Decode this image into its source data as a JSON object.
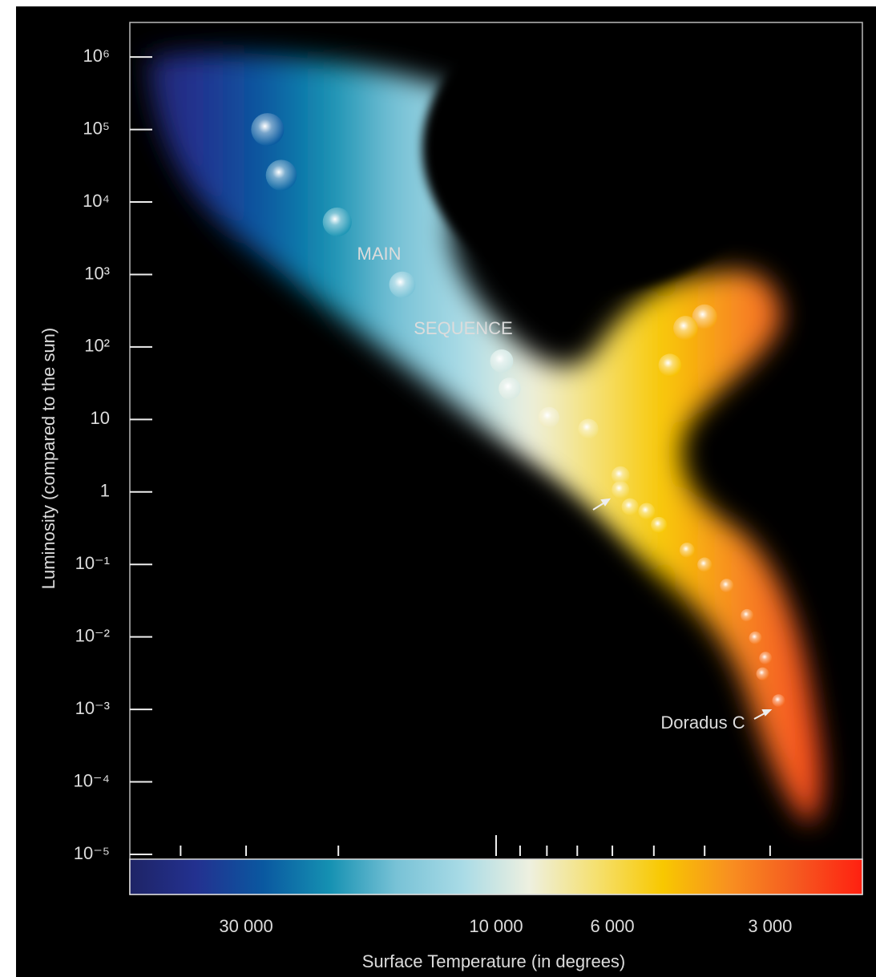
{
  "chart_data": {
    "type": "scatter",
    "x_label": "Surface Temperature (in degrees)",
    "y_label": "Luminosity (compared to the sun)",
    "x_log": true,
    "x_reversed": true,
    "y_log": true,
    "xlim": [
      50000,
      2000
    ],
    "ylim": [
      1e-05,
      3000000
    ],
    "xticks": [
      {
        "value": 30000,
        "label": "30 000"
      },
      {
        "value": 10000,
        "label": "10 000"
      },
      {
        "value": 6000,
        "label": "6 000"
      },
      {
        "value": 3000,
        "label": "3 000"
      }
    ],
    "xticks_minor": [
      40000,
      20000,
      9000,
      8000,
      7000,
      5000,
      4000
    ],
    "yticks": [
      {
        "value": 1000000,
        "label": "10⁶"
      },
      {
        "value": 100000,
        "label": "10⁵"
      },
      {
        "value": 10000,
        "label": "10⁴"
      },
      {
        "value": 1000,
        "label": "10³"
      },
      {
        "value": 100,
        "label": "10²"
      },
      10,
      1,
      {
        "value": 0.1,
        "label": "10⁻¹"
      },
      {
        "value": 0.01,
        "label": "10⁻²"
      },
      {
        "value": 0.001,
        "label": "10⁻³"
      },
      {
        "value": 0.0001,
        "label": "10⁻⁴"
      },
      {
        "value": 1e-05,
        "label": "10⁻⁵"
      }
    ],
    "colormap": [
      "#1e2466",
      "#233190",
      "#0a58a0",
      "#1591b2",
      "#78c2d6",
      "#a9dbe6",
      "#eef0e0",
      "#f5e070",
      "#f8c800",
      "#f89020",
      "#f55a20",
      "#ff2010"
    ],
    "x": [
      27300,
      25700,
      20100,
      15100,
      9760,
      9420,
      7930,
      6670,
      5790,
      5790,
      5550,
      5160,
      4890,
      4320,
      4000,
      3630,
      3320,
      3200,
      3060,
      3100,
      2890,
      4000,
      4350,
      4660
    ],
    "values": [
      100000,
      23400,
      5300,
      724,
      64,
      26.7,
      10.7,
      7.4,
      1.69,
      1.07,
      0.625,
      0.54,
      0.35,
      0.157,
      0.099,
      0.051,
      0.0198,
      0.0097,
      0.0051,
      0.0031,
      0.00132,
      260,
      182,
      56
    ],
    "annotations": [
      "MAIN",
      "SEQUENCE",
      "Doradus C"
    ]
  }
}
